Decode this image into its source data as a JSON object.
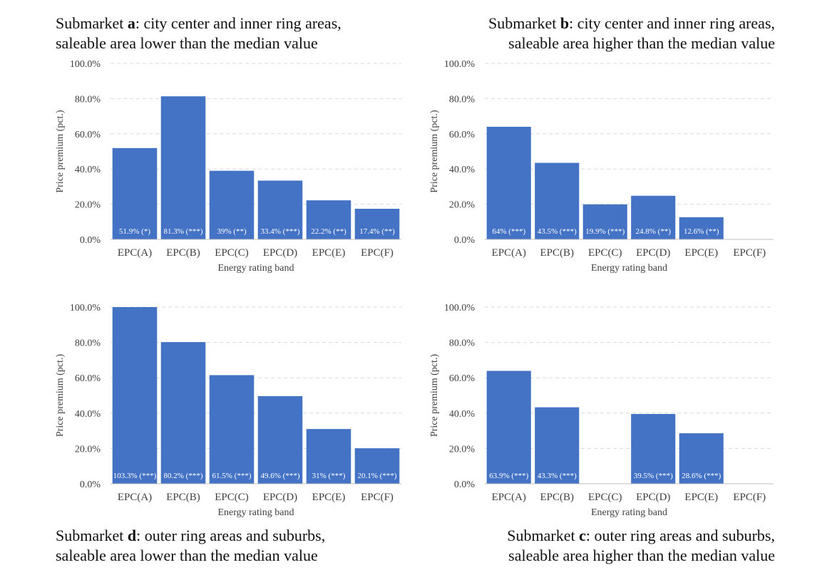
{
  "captions": [
    {
      "prefix": "Submarket ",
      "letter": "a",
      "rest": ": city center and inner ring areas,",
      "line2": "saleable area lower than the median value"
    },
    {
      "prefix": "Submarket ",
      "letter": "b",
      "rest": ": city center and inner ring areas,",
      "line2": "saleable area higher than the median value"
    },
    {
      "prefix": "Submarket ",
      "letter": "d",
      "rest": ": outer ring areas and suburbs,",
      "line2": "saleable area lower than the median value"
    },
    {
      "prefix": "Submarket ",
      "letter": "c",
      "rest": ": outer ring areas and suburbs,",
      "line2": "saleable area higher than the median value"
    }
  ],
  "colors": {
    "bar": "#4472C4",
    "grid": "#D9D9D9",
    "axis": "#BFBFBF",
    "label": "#FFFFFF",
    "text": "#404040"
  },
  "chart_data": [
    {
      "type": "bar",
      "categories": [
        "EPC(A)",
        "EPC(B)",
        "EPC(C)",
        "EPC(D)",
        "EPC(E)",
        "EPC(F)"
      ],
      "values": [
        51.9,
        81.3,
        39,
        33.4,
        22.2,
        17.4
      ],
      "data_labels": [
        "51.9% (*)",
        "81.3% (***)",
        "39% (**)",
        "33.4% (***)",
        "22.2% (**)",
        "17.4% (**)"
      ],
      "yticks": [
        "0.0%",
        "20.0%",
        "40.0%",
        "60.0%",
        "80.0%",
        "100.0%"
      ],
      "xlabel": "Energy rating band",
      "ylabel": "Price premium (pct.)",
      "ylim": [
        0,
        100
      ],
      "grid": true
    },
    {
      "type": "bar",
      "categories": [
        "EPC(A)",
        "EPC(B)",
        "EPC(C)",
        "EPC(D)",
        "EPC(E)",
        "EPC(F)"
      ],
      "values": [
        64,
        43.5,
        19.9,
        24.8,
        12.6,
        0
      ],
      "data_labels": [
        "64% (***)",
        "43.5% (***)",
        "19.9% (***)",
        "24.8% (**)",
        "12.6% (**)",
        ""
      ],
      "yticks": [
        "0.0%",
        "20.0%",
        "40.0%",
        "60.0%",
        "80.0%",
        "100.0%"
      ],
      "xlabel": "Energy rating band",
      "ylabel": "Price premium (pct.)",
      "ylim": [
        0,
        100
      ],
      "grid": true
    },
    {
      "type": "bar",
      "categories": [
        "EPC(A)",
        "EPC(B)",
        "EPC(C)",
        "EPC(D)",
        "EPC(E)",
        "EPC(F)"
      ],
      "values": [
        103.3,
        80.2,
        61.5,
        49.6,
        31,
        20.1
      ],
      "data_labels": [
        "103.3% (***)",
        "80.2% (***)",
        "61.5% (***)",
        "49.6% (***)",
        "31% (***)",
        "20.1% (***)"
      ],
      "yticks": [
        "0.0%",
        "20.0%",
        "40.0%",
        "60.0%",
        "80.0%",
        "100.0%"
      ],
      "xlabel": "Energy rating band",
      "ylabel": "Price premium (pct.)",
      "ylim": [
        0,
        100
      ],
      "grid": true
    },
    {
      "type": "bar",
      "categories": [
        "EPC(A)",
        "EPC(B)",
        "EPC(C)",
        "EPC(D)",
        "EPC(E)",
        "EPC(F)"
      ],
      "values": [
        63.9,
        43.3,
        0,
        39.5,
        28.6,
        0
      ],
      "data_labels": [
        "63.9% (***)",
        "43.3% (***)",
        "",
        "39.5% (***)",
        "28.6% (***)",
        ""
      ],
      "yticks": [
        "0.0%",
        "20.0%",
        "40.0%",
        "60.0%",
        "80.0%",
        "100.0%"
      ],
      "xlabel": "Energy rating band",
      "ylabel": "Price premium (pct.)",
      "ylim": [
        0,
        100
      ],
      "grid": true
    }
  ]
}
